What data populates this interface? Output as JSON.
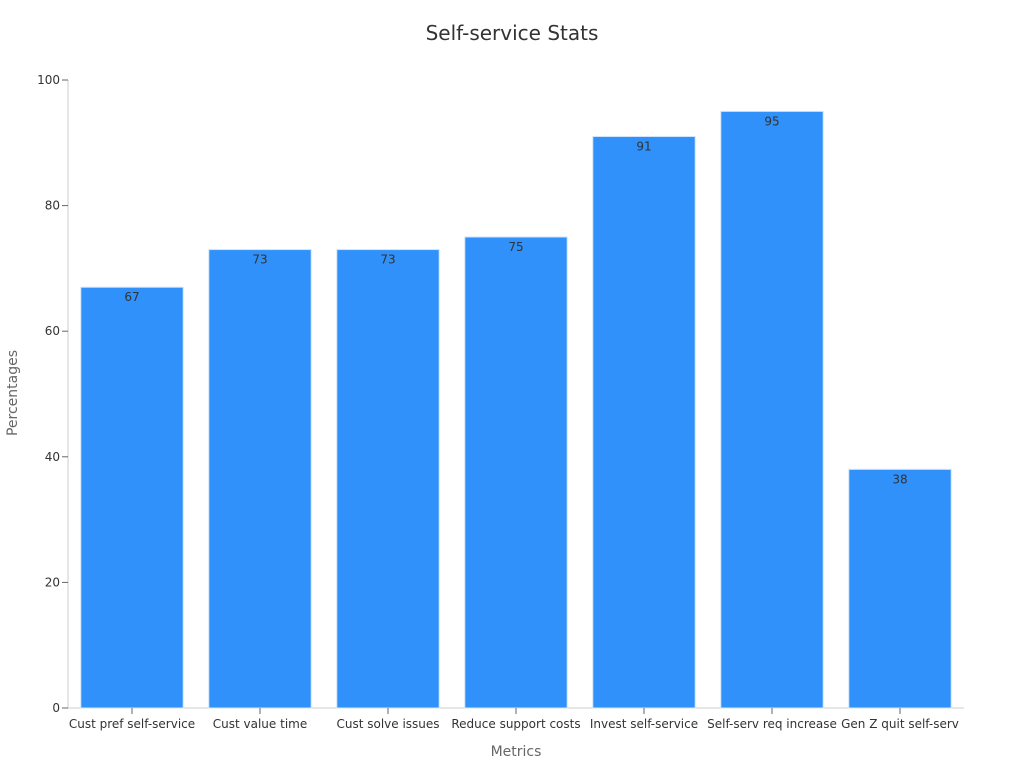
{
  "chart_data": {
    "type": "bar",
    "title": "Self-service Stats",
    "xlabel": "Metrics",
    "ylabel": "Percentages",
    "categories": [
      "Cust pref self-service",
      "Cust value time",
      "Cust solve issues",
      "Reduce support costs",
      "Invest self-service",
      "Self-serv req increase",
      "Gen Z quit self-serv"
    ],
    "values": [
      67,
      73,
      73,
      75,
      91,
      95,
      38
    ],
    "data_labels": [
      "67",
      "73",
      "73",
      "75",
      "91",
      "95",
      "38"
    ],
    "ylim": [
      0,
      100
    ],
    "yticks": [
      0,
      20,
      40,
      60,
      80,
      100
    ],
    "ytick_labels": [
      "0",
      "20",
      "40",
      "60",
      "80",
      "100"
    ],
    "grid": false,
    "legend": "none",
    "bar_color": "#2f91f9"
  }
}
